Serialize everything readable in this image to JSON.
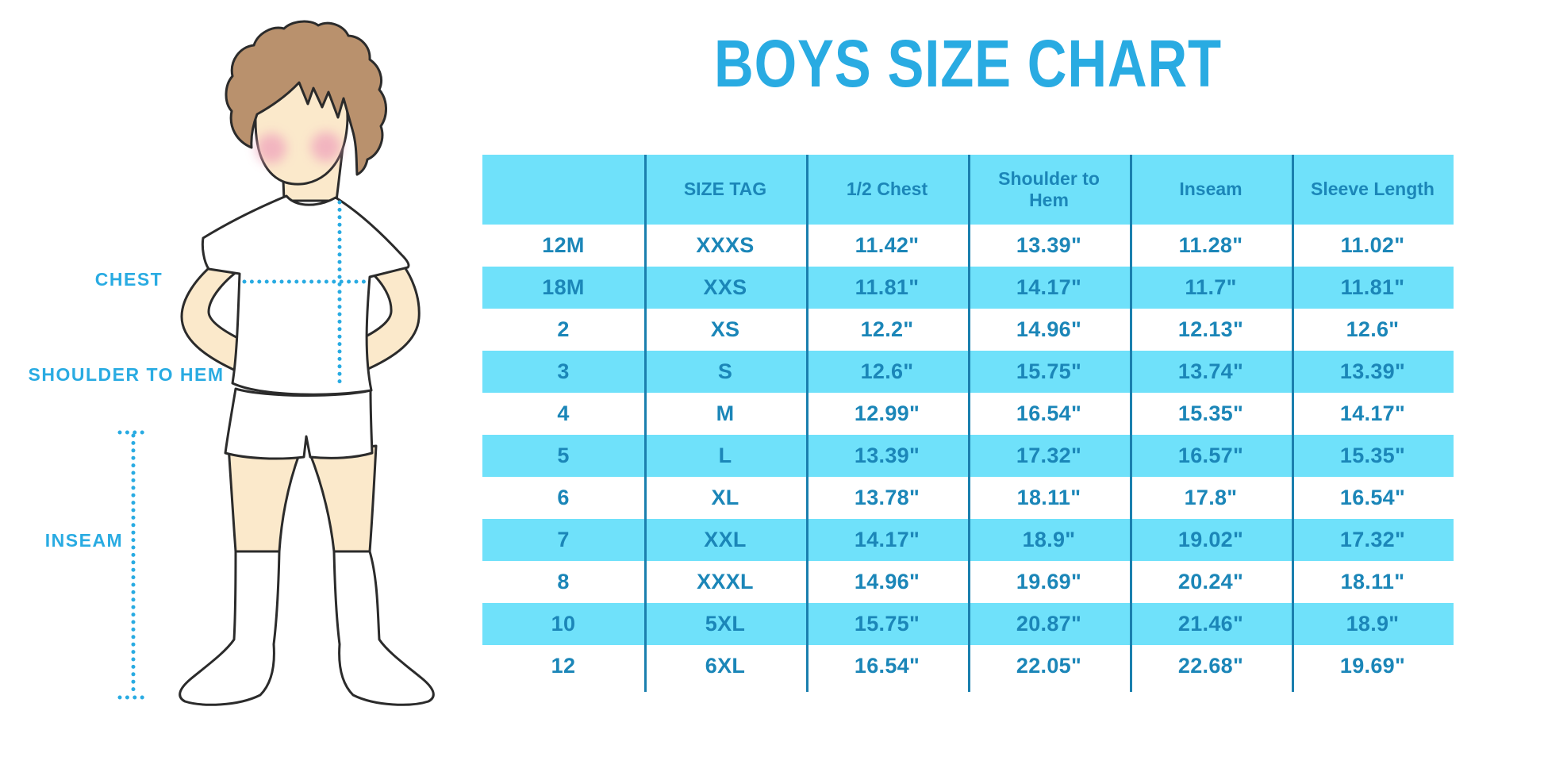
{
  "title": "BOYS SIZE CHART",
  "figure": {
    "description": "boy-mannequin-illustration",
    "labels": {
      "chest": "CHEST",
      "shoulder_to_hem": "SHOULDER TO HEM",
      "inseam": "INSEAM"
    }
  },
  "colors": {
    "accent": "#29abe2",
    "table_fill": "#6fe1fa",
    "table_line": "#1a7fae",
    "table_text": "#1b86b8",
    "skin": "#fbe9cb",
    "hair": "#b9916d",
    "cheek": "#f0a8bd",
    "outline": "#2b2b2b"
  },
  "chart_data": {
    "type": "table",
    "title": "BOYS SIZE CHART",
    "units": "inches",
    "columns": [
      "",
      "SIZE TAG",
      "1/2 Chest",
      "Shoulder to Hem",
      "Inseam",
      "Sleeve Length"
    ],
    "rows": [
      [
        "12M",
        "XXXS",
        "11.42\"",
        "13.39\"",
        "11.28\"",
        "11.02\""
      ],
      [
        "18M",
        "XXS",
        "11.81\"",
        "14.17\"",
        "11.7\"",
        "11.81\""
      ],
      [
        "2",
        "XS",
        "12.2\"",
        "14.96\"",
        "12.13\"",
        "12.6\""
      ],
      [
        "3",
        "S",
        "12.6\"",
        "15.75\"",
        "13.74\"",
        "13.39\""
      ],
      [
        "4",
        "M",
        "12.99\"",
        "16.54\"",
        "15.35\"",
        "14.17\""
      ],
      [
        "5",
        "L",
        "13.39\"",
        "17.32\"",
        "16.57\"",
        "15.35\""
      ],
      [
        "6",
        "XL",
        "13.78\"",
        "18.11\"",
        "17.8\"",
        "16.54\""
      ],
      [
        "7",
        "XXL",
        "14.17\"",
        "18.9\"",
        "19.02\"",
        "17.32\""
      ],
      [
        "8",
        "XXXL",
        "14.96\"",
        "19.69\"",
        "20.24\"",
        "18.11\""
      ],
      [
        "10",
        "5XL",
        "15.75\"",
        "20.87\"",
        "21.46\"",
        "18.9\""
      ],
      [
        "12",
        "6XL",
        "16.54\"",
        "22.05\"",
        "22.68\"",
        "19.69\""
      ]
    ]
  }
}
